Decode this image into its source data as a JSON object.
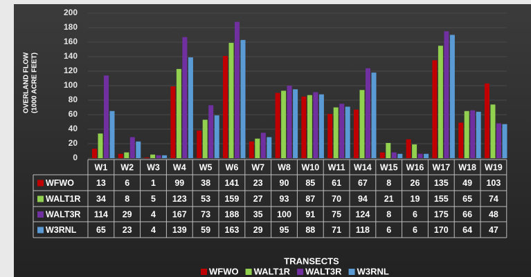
{
  "chart_data": {
    "type": "bar",
    "y_label_lines": [
      "OVERLAND FLOW",
      "(1000 ACRE FEET)"
    ],
    "x_label": "TRANSECTS",
    "categories": [
      "W1",
      "W2",
      "W3",
      "W4",
      "W5",
      "W6",
      "W7",
      "W8",
      "W10",
      "W11",
      "W14",
      "W15",
      "W16",
      "W17",
      "W18",
      "W19"
    ],
    "series": [
      {
        "name": "WFWO",
        "color": "#c00000",
        "values": [
          13,
          6,
          1,
          99,
          38,
          141,
          23,
          90,
          85,
          61,
          67,
          8,
          26,
          135,
          49,
          103
        ]
      },
      {
        "name": "WALT1R",
        "color": "#92d050",
        "values": [
          34,
          8,
          5,
          123,
          53,
          159,
          27,
          93,
          87,
          70,
          94,
          21,
          19,
          155,
          65,
          74
        ]
      },
      {
        "name": "WALT3R",
        "color": "#7030a0",
        "values": [
          114,
          29,
          4,
          167,
          73,
          188,
          35,
          100,
          91,
          75,
          124,
          8,
          6,
          175,
          66,
          48
        ]
      },
      {
        "name": "W3RNL",
        "color": "#5b9bd5",
        "values": [
          65,
          23,
          4,
          139,
          59,
          163,
          29,
          95,
          88,
          71,
          118,
          6,
          6,
          170,
          64,
          47
        ]
      }
    ],
    "ylim": [
      0,
      200
    ],
    "yticks": [
      0,
      20,
      40,
      60,
      80,
      100,
      120,
      140,
      160,
      180,
      200
    ],
    "grid": true,
    "data_table": true,
    "legend": "bottom"
  }
}
